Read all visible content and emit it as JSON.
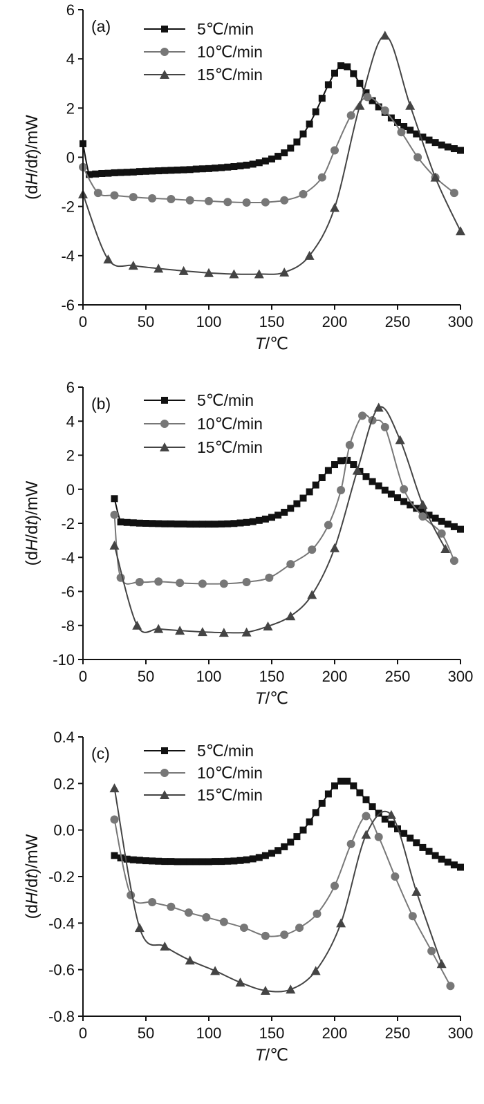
{
  "chart_data": [
    {
      "type": "line",
      "panel_label": "(a)",
      "xlabel_italic": "T",
      "xlabel_unit": "/℃",
      "ylabel_pre": "(d",
      "ylabel_italic": "H",
      "ylabel_mid": "/d",
      "ylabel_italic2": "t",
      "ylabel_post": ")/mW",
      "xlim": [
        0,
        300
      ],
      "ylim": [
        -6,
        6
      ],
      "xticks": [
        0,
        50,
        100,
        150,
        200,
        250,
        300
      ],
      "yticks": [
        -6,
        -4,
        -2,
        0,
        2,
        4,
        6
      ],
      "xtick_labels": [
        "0",
        "50",
        "100",
        "150",
        "200",
        "250",
        "300"
      ],
      "ytick_labels": [
        "-6",
        "-4",
        "-2",
        "0",
        "2",
        "4",
        "6"
      ],
      "legend_position": "top-left",
      "series": [
        {
          "name": "5℃/min",
          "marker": "square",
          "color": "#111111",
          "x": [
            0,
            5,
            10,
            15,
            20,
            25,
            30,
            35,
            40,
            45,
            50,
            55,
            60,
            65,
            70,
            75,
            80,
            85,
            90,
            95,
            100,
            105,
            110,
            115,
            120,
            125,
            130,
            135,
            140,
            145,
            150,
            155,
            160,
            165,
            170,
            175,
            180,
            185,
            190,
            195,
            200,
            205,
            210,
            215,
            220,
            225,
            230,
            235,
            240,
            245,
            250,
            255,
            260,
            265,
            270,
            275,
            280,
            285,
            290,
            295,
            300
          ],
          "y": [
            0.55,
            -0.7,
            -0.68,
            -0.66,
            -0.65,
            -0.63,
            -0.62,
            -0.61,
            -0.6,
            -0.58,
            -0.57,
            -0.56,
            -0.55,
            -0.54,
            -0.53,
            -0.52,
            -0.51,
            -0.5,
            -0.48,
            -0.47,
            -0.46,
            -0.44,
            -0.42,
            -0.4,
            -0.38,
            -0.35,
            -0.32,
            -0.28,
            -0.22,
            -0.15,
            -0.07,
            0.04,
            0.18,
            0.37,
            0.62,
            0.95,
            1.35,
            1.85,
            2.4,
            2.95,
            3.42,
            3.72,
            3.68,
            3.4,
            3.0,
            2.62,
            2.3,
            2.05,
            1.82,
            1.6,
            1.42,
            1.25,
            1.1,
            0.95,
            0.82,
            0.7,
            0.6,
            0.5,
            0.42,
            0.35,
            0.28
          ]
        },
        {
          "name": "10℃/min",
          "marker": "circle",
          "color": "#777777",
          "x": [
            0,
            12,
            25,
            40,
            55,
            70,
            85,
            100,
            115,
            130,
            145,
            160,
            175,
            190,
            200,
            213,
            226,
            240,
            253,
            266,
            280,
            295
          ],
          "y": [
            -0.4,
            -1.45,
            -1.55,
            -1.62,
            -1.67,
            -1.7,
            -1.75,
            -1.78,
            -1.82,
            -1.84,
            -1.83,
            -1.75,
            -1.5,
            -0.82,
            0.28,
            1.7,
            2.45,
            1.9,
            1.02,
            0.0,
            -0.82,
            -1.45
          ]
        },
        {
          "name": "15℃/min",
          "marker": "triangle",
          "color": "#444444",
          "x": [
            0,
            20,
            40,
            60,
            80,
            100,
            120,
            140,
            160,
            180,
            200,
            220,
            240,
            260,
            280,
            300
          ],
          "y": [
            -1.5,
            -4.15,
            -4.4,
            -4.52,
            -4.62,
            -4.7,
            -4.75,
            -4.75,
            -4.68,
            -4.0,
            -2.05,
            2.1,
            4.95,
            2.1,
            -0.82,
            -3.0
          ]
        }
      ]
    },
    {
      "type": "line",
      "panel_label": "(b)",
      "xlabel_italic": "T",
      "xlabel_unit": "/℃",
      "ylabel_pre": "(d",
      "ylabel_italic": "H",
      "ylabel_mid": "/d",
      "ylabel_italic2": "t",
      "ylabel_post": ")/mW",
      "xlim": [
        0,
        300
      ],
      "ylim": [
        -10,
        6
      ],
      "xticks": [
        0,
        50,
        100,
        150,
        200,
        250,
        300
      ],
      "yticks": [
        -10,
        -8,
        -6,
        -4,
        -2,
        0,
        2,
        4,
        6
      ],
      "xtick_labels": [
        "0",
        "50",
        "100",
        "150",
        "200",
        "250",
        "300"
      ],
      "ytick_labels": [
        "-10",
        "-8",
        "-6",
        "-4",
        "-2",
        "0",
        "2",
        "4",
        "6"
      ],
      "legend_position": "top-left",
      "series": [
        {
          "name": "5℃/min",
          "marker": "square",
          "color": "#111111",
          "x": [
            25,
            30,
            35,
            40,
            45,
            50,
            55,
            60,
            65,
            70,
            75,
            80,
            85,
            90,
            95,
            100,
            105,
            110,
            115,
            120,
            125,
            130,
            135,
            140,
            145,
            150,
            155,
            160,
            165,
            170,
            175,
            180,
            185,
            190,
            195,
            200,
            205,
            210,
            215,
            220,
            225,
            230,
            235,
            240,
            245,
            250,
            255,
            260,
            265,
            270,
            275,
            280,
            285,
            290,
            295,
            300
          ],
          "y": [
            -0.55,
            -1.92,
            -1.95,
            -1.97,
            -1.99,
            -2.0,
            -2.01,
            -2.02,
            -2.03,
            -2.03,
            -2.04,
            -2.04,
            -2.05,
            -2.05,
            -2.05,
            -2.05,
            -2.05,
            -2.04,
            -2.03,
            -2.01,
            -1.98,
            -1.95,
            -1.9,
            -1.83,
            -1.75,
            -1.65,
            -1.52,
            -1.35,
            -1.12,
            -0.85,
            -0.52,
            -0.15,
            0.25,
            0.68,
            1.1,
            1.45,
            1.68,
            1.7,
            1.45,
            1.05,
            0.75,
            0.45,
            0.2,
            -0.05,
            -0.28,
            -0.5,
            -0.72,
            -0.92,
            -1.12,
            -1.32,
            -1.52,
            -1.7,
            -1.88,
            -2.05,
            -2.2,
            -2.35
          ]
        },
        {
          "name": "10℃/min",
          "marker": "circle",
          "color": "#777777",
          "x": [
            25,
            30,
            45,
            60,
            77,
            95,
            112,
            130,
            148,
            165,
            182,
            195,
            205,
            212,
            222,
            230,
            240,
            255,
            270,
            285,
            295
          ],
          "y": [
            -1.5,
            -5.2,
            -5.45,
            -5.42,
            -5.5,
            -5.55,
            -5.55,
            -5.45,
            -5.2,
            -4.4,
            -3.55,
            -2.1,
            -0.05,
            2.6,
            4.32,
            4.05,
            3.65,
            0.0,
            -1.6,
            -2.6,
            -4.2
          ]
        },
        {
          "name": "15℃/min",
          "marker": "triangle",
          "color": "#444444",
          "x": [
            25,
            43,
            60,
            77,
            95,
            112,
            130,
            147,
            165,
            182,
            200,
            218,
            235,
            252,
            270,
            288
          ],
          "y": [
            -3.3,
            -8.0,
            -8.2,
            -8.3,
            -8.38,
            -8.42,
            -8.4,
            -8.05,
            -7.45,
            -6.2,
            -3.45,
            1.1,
            4.8,
            2.9,
            -0.9,
            -3.5
          ]
        }
      ]
    },
    {
      "type": "line",
      "panel_label": "(c)",
      "xlabel_italic": "T",
      "xlabel_unit": "/℃",
      "ylabel_pre": "(d",
      "ylabel_italic": "H",
      "ylabel_mid": "/d",
      "ylabel_italic2": "t",
      "ylabel_post": ")/mW",
      "xlim": [
        0,
        300
      ],
      "ylim": [
        -0.8,
        0.4
      ],
      "xticks": [
        0,
        50,
        100,
        150,
        200,
        250,
        300
      ],
      "yticks": [
        -0.8,
        -0.6,
        -0.4,
        -0.2,
        0.0,
        0.2,
        0.4
      ],
      "xtick_labels": [
        "0",
        "50",
        "100",
        "150",
        "200",
        "250",
        "300"
      ],
      "ytick_labels": [
        "-0.8",
        "-0.6",
        "-0.4",
        "-0.2",
        "0.0",
        "0.2",
        "0.4"
      ],
      "legend_position": "top-left",
      "series": [
        {
          "name": "5℃/min",
          "marker": "square",
          "color": "#111111",
          "x": [
            25,
            30,
            35,
            40,
            45,
            50,
            55,
            60,
            65,
            70,
            75,
            80,
            85,
            90,
            95,
            100,
            105,
            110,
            115,
            120,
            125,
            130,
            135,
            140,
            145,
            150,
            155,
            160,
            165,
            170,
            175,
            180,
            185,
            190,
            195,
            200,
            205,
            210,
            215,
            220,
            225,
            230,
            235,
            240,
            245,
            250,
            255,
            260,
            265,
            270,
            275,
            280,
            285,
            290,
            295,
            300
          ],
          "y": [
            -0.11,
            -0.12,
            -0.125,
            -0.128,
            -0.13,
            -0.132,
            -0.133,
            -0.134,
            -0.135,
            -0.135,
            -0.136,
            -0.136,
            -0.136,
            -0.136,
            -0.136,
            -0.136,
            -0.135,
            -0.135,
            -0.134,
            -0.133,
            -0.131,
            -0.128,
            -0.124,
            -0.118,
            -0.11,
            -0.1,
            -0.088,
            -0.072,
            -0.052,
            -0.028,
            0.0,
            0.035,
            0.075,
            0.115,
            0.155,
            0.19,
            0.21,
            0.21,
            0.19,
            0.16,
            0.13,
            0.1,
            0.072,
            0.047,
            0.025,
            0.005,
            -0.015,
            -0.035,
            -0.055,
            -0.075,
            -0.092,
            -0.11,
            -0.125,
            -0.138,
            -0.15,
            -0.16
          ]
        },
        {
          "name": "10℃/min",
          "marker": "circle",
          "color": "#777777",
          "x": [
            25,
            38,
            55,
            70,
            84,
            98,
            112,
            128,
            145,
            160,
            172,
            186,
            200,
            213,
            225,
            235,
            248,
            262,
            277,
            292
          ],
          "y": [
            0.045,
            -0.28,
            -0.31,
            -0.33,
            -0.355,
            -0.375,
            -0.395,
            -0.42,
            -0.455,
            -0.45,
            -0.42,
            -0.36,
            -0.24,
            -0.06,
            0.06,
            -0.03,
            -0.2,
            -0.37,
            -0.52,
            -0.67
          ]
        },
        {
          "name": "15℃/min",
          "marker": "triangle",
          "color": "#444444",
          "x": [
            25,
            45,
            65,
            85,
            105,
            125,
            145,
            165,
            185,
            205,
            225,
            245,
            265,
            285
          ],
          "y": [
            0.18,
            -0.42,
            -0.5,
            -0.56,
            -0.605,
            -0.655,
            -0.69,
            -0.685,
            -0.605,
            -0.4,
            -0.02,
            0.065,
            -0.265,
            -0.575
          ]
        }
      ]
    }
  ]
}
